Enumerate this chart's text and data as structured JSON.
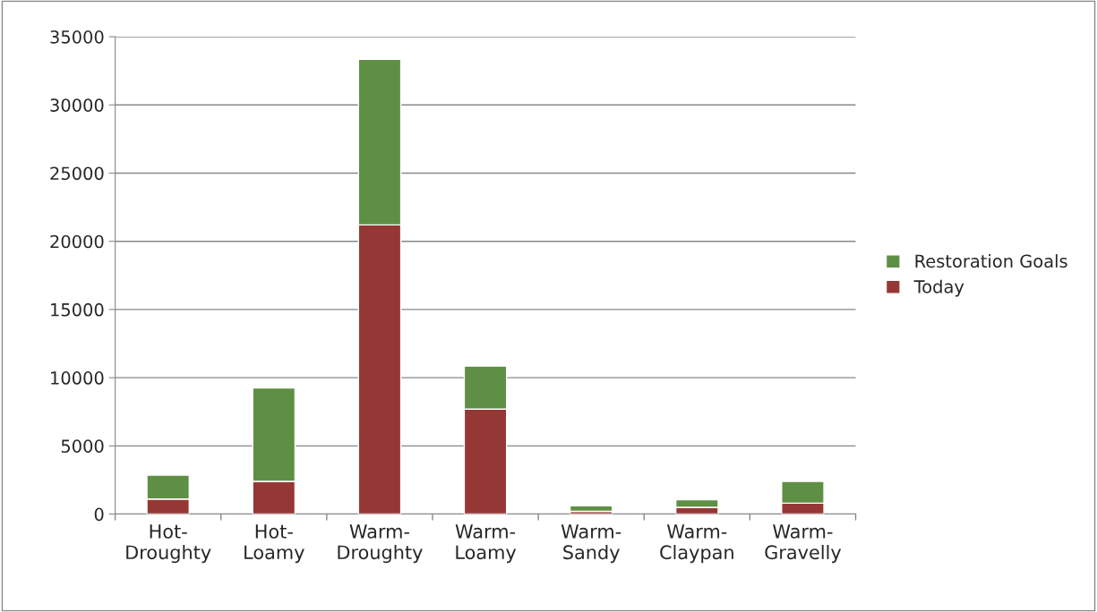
{
  "chart_data": {
    "type": "bar",
    "stacked": true,
    "categories": [
      "Hot-\nDroughty",
      "Hot-\nLoamy",
      "Warm-\nDroughty",
      "Warm-\nLoamy",
      "Warm-\nSandy",
      "Warm-\nClaypan",
      "Warm-\nGravelly"
    ],
    "series": [
      {
        "name": "Today",
        "color": "#953735",
        "values": [
          1100,
          2400,
          21200,
          7700,
          200,
          500,
          800
        ]
      },
      {
        "name": "Restoration Goals",
        "color": "#5f8f45",
        "values": [
          1750,
          6850,
          12150,
          3150,
          400,
          550,
          1600
        ]
      }
    ],
    "ylim": [
      0,
      35000
    ],
    "yticks": [
      0,
      5000,
      10000,
      15000,
      20000,
      25000,
      30000,
      35000
    ],
    "grid": "y",
    "legend": "right"
  }
}
